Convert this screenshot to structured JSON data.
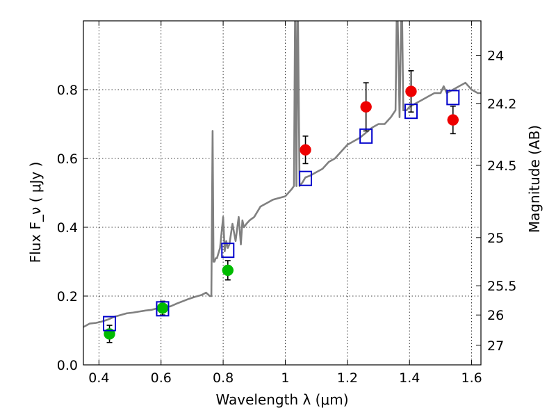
{
  "chart_data": {
    "type": "scatter",
    "xlabel": "Wavelength  λ (μm)",
    "ylabel": "Flux  F_ν  ( μJy )",
    "y2label": "Magnitude (AB)",
    "xlim": [
      0.35,
      1.63
    ],
    "ylim": [
      0.0,
      1.0
    ],
    "grid": true,
    "x_ticks": [
      0.4,
      0.6,
      0.8,
      1.0,
      1.2,
      1.4,
      1.6
    ],
    "x_tick_labels": [
      "0.4",
      "0.6",
      "0.8",
      "1",
      "1.2",
      "1.4",
      "1.6"
    ],
    "y_ticks": [
      0.0,
      0.2,
      0.4,
      0.6,
      0.8
    ],
    "y_tick_labels": [
      "0.0",
      "0.2",
      "0.4",
      "0.6",
      "0.8"
    ],
    "y2_ticks": [
      {
        "label": "24",
        "flux": 0.9
      },
      {
        "label": "24.2",
        "flux": 0.76
      },
      {
        "label": "24.5",
        "flux": 0.58
      },
      {
        "label": "25",
        "flux": 0.37
      },
      {
        "label": "25.5",
        "flux": 0.23
      },
      {
        "label": "26",
        "flux": 0.145
      },
      {
        "label": "27",
        "flux": 0.057
      }
    ],
    "colors": {
      "spectrum": "#808080",
      "green_points": "#00bb00",
      "red_points": "#ee0000",
      "model_squares": "#0000cc",
      "error_bars": "#000000",
      "grid": "#000000"
    },
    "spectrum": {
      "x": [
        0.35,
        0.37,
        0.39,
        0.41,
        0.43,
        0.45,
        0.47,
        0.49,
        0.51,
        0.53,
        0.55,
        0.57,
        0.59,
        0.61,
        0.63,
        0.65,
        0.67,
        0.69,
        0.71,
        0.73,
        0.745,
        0.757,
        0.762,
        0.766,
        0.769,
        0.772,
        0.776,
        0.78,
        0.79,
        0.8,
        0.805,
        0.81,
        0.815,
        0.82,
        0.83,
        0.84,
        0.85,
        0.857,
        0.862,
        0.867,
        0.875,
        0.885,
        0.9,
        0.92,
        0.94,
        0.96,
        0.98,
        1.0,
        1.02,
        1.028,
        1.032,
        1.036,
        1.04,
        1.046,
        1.055,
        1.065,
        1.08,
        1.1,
        1.12,
        1.14,
        1.16,
        1.18,
        1.2,
        1.22,
        1.24,
        1.26,
        1.28,
        1.3,
        1.32,
        1.34,
        1.355,
        1.36,
        1.368,
        1.375,
        1.38,
        1.39,
        1.4,
        1.42,
        1.44,
        1.46,
        1.48,
        1.5,
        1.51,
        1.52,
        1.54,
        1.56,
        1.58,
        1.6,
        1.62,
        1.63
      ],
      "y": [
        0.11,
        0.12,
        0.122,
        0.126,
        0.132,
        0.14,
        0.145,
        0.15,
        0.152,
        0.155,
        0.158,
        0.16,
        0.165,
        0.168,
        0.17,
        0.178,
        0.185,
        0.192,
        0.198,
        0.203,
        0.21,
        0.2,
        0.2,
        0.68,
        0.3,
        0.3,
        0.31,
        0.31,
        0.34,
        0.43,
        0.33,
        0.36,
        0.34,
        0.35,
        0.41,
        0.36,
        0.43,
        0.35,
        0.42,
        0.4,
        0.41,
        0.42,
        0.43,
        0.46,
        0.47,
        0.48,
        0.485,
        0.49,
        0.51,
        0.52,
        1.0,
        0.52,
        1.0,
        0.52,
        0.53,
        0.545,
        0.55,
        0.56,
        0.57,
        0.59,
        0.6,
        0.62,
        0.64,
        0.65,
        0.66,
        0.675,
        0.69,
        0.7,
        0.7,
        0.72,
        0.74,
        1.0,
        0.72,
        1.0,
        0.74,
        0.74,
        0.75,
        0.76,
        0.77,
        0.78,
        0.79,
        0.79,
        0.81,
        0.79,
        0.8,
        0.81,
        0.82,
        0.8,
        0.79,
        0.79
      ]
    },
    "series": [
      {
        "marker": "circle",
        "color": "green",
        "x": [
          0.434,
          0.605,
          0.815
        ],
        "y": [
          0.09,
          0.165,
          0.275
        ],
        "yerr": [
          0.025,
          0.02,
          0.028
        ]
      },
      {
        "marker": "circle",
        "color": "red",
        "x": [
          1.065,
          1.26,
          1.405,
          1.54
        ],
        "y": [
          0.625,
          0.75,
          0.795,
          0.712
        ],
        "yerr": [
          0.04,
          0.07,
          0.06,
          0.04
        ]
      },
      {
        "marker": "open-square",
        "color": "blue",
        "x": [
          0.434,
          0.605,
          0.815,
          1.065,
          1.26,
          1.405,
          1.54
        ],
        "y": [
          0.12,
          0.163,
          0.333,
          0.542,
          0.665,
          0.737,
          0.777
        ]
      }
    ]
  }
}
